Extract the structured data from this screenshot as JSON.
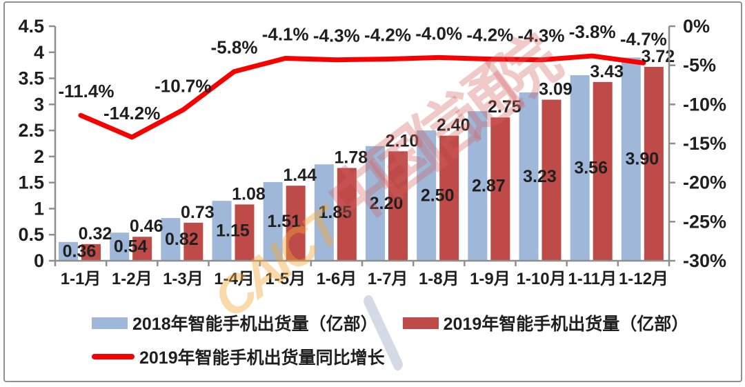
{
  "frame": {
    "border_color": "#8f8f8f",
    "background": "#ffffff"
  },
  "watermark": {
    "en_text": "CAICT",
    "cn_text": "中国信通院",
    "en_color": "rgba(243,166,56,0.42)",
    "cn_color": "rgba(211,98,98,0.34)",
    "swoosh_color": "rgba(112,134,172,0.30)"
  },
  "legend": {
    "items": [
      {
        "label": "2018年智能手机出货量（亿部）",
        "swatch": "rect",
        "color": "#9FB8D9"
      },
      {
        "label": "2019年智能手机出货量（亿部）",
        "swatch": "rect",
        "color": "#BE4B48"
      },
      {
        "label": "2019年智能手机出货量同比增长",
        "swatch": "line",
        "color": "#F80000"
      }
    ]
  },
  "chart_data": {
    "type": "combo-bar-line",
    "title": "",
    "categories": [
      "1-1月",
      "1-2月",
      "1-3月",
      "1-4月",
      "1-5月",
      "1-6月",
      "1-7月",
      "1-8月",
      "1-9月",
      "1-10月",
      "1-11月",
      "1-12月"
    ],
    "series": [
      {
        "name": "2018年智能手机出货量（亿部）",
        "type": "bar",
        "axis": "left",
        "color": "#9FB8D9",
        "values": [
          0.36,
          0.54,
          0.82,
          1.15,
          1.51,
          1.85,
          2.2,
          2.5,
          2.87,
          3.23,
          3.56,
          3.9
        ],
        "labels": [
          "0.36",
          "0.54",
          "0.82",
          "1.15",
          "1.51",
          "1.85",
          "2.20",
          "2.50",
          "2.87",
          "3.23",
          "3.56",
          "3.90"
        ],
        "label_position": "center"
      },
      {
        "name": "2019年智能手机出货量（亿部）",
        "type": "bar",
        "axis": "left",
        "color": "#BE4B48",
        "values": [
          0.32,
          0.46,
          0.73,
          1.08,
          1.44,
          1.78,
          2.1,
          2.4,
          2.75,
          3.09,
          3.43,
          3.72
        ],
        "labels": [
          "0.32",
          "0.46",
          "0.73",
          "1.08",
          "1.44",
          "1.78",
          "2.10",
          "2.40",
          "2.75",
          "3.09",
          "3.43",
          "3.72"
        ],
        "label_position": "outside-end"
      },
      {
        "name": "2019年智能手机出货量同比增长",
        "type": "line",
        "axis": "right",
        "color": "#F80000",
        "values": [
          -11.4,
          -14.2,
          -10.7,
          -5.8,
          -4.1,
          -4.3,
          -4.2,
          -4.0,
          -4.2,
          -4.3,
          -3.8,
          -4.7
        ],
        "labels": [
          "-11.4%",
          "-14.2%",
          "-10.7%",
          "-5.8%",
          "-4.1%",
          "-4.3%",
          "-4.2%",
          "-4.0%",
          "-4.2%",
          "-4.3%",
          "-3.8%",
          "-4.7%"
        ],
        "label_position": "above"
      }
    ],
    "left_axis": {
      "min": 0,
      "max": 4.5,
      "step": 0.5,
      "ticks": [
        "4.5",
        "4",
        "3.5",
        "3",
        "2.5",
        "2",
        "1.5",
        "1",
        "0.5",
        "0"
      ]
    },
    "right_axis": {
      "min": -30,
      "max": 0,
      "step": 5,
      "ticks": [
        "0%",
        "-5%",
        "-10%",
        "-15%",
        "-20%",
        "-25%",
        "-30%"
      ]
    },
    "grid": false,
    "legend_position": "bottom-left",
    "axis_color": "#8e8e8e",
    "text_color": "#1f1f1f"
  }
}
